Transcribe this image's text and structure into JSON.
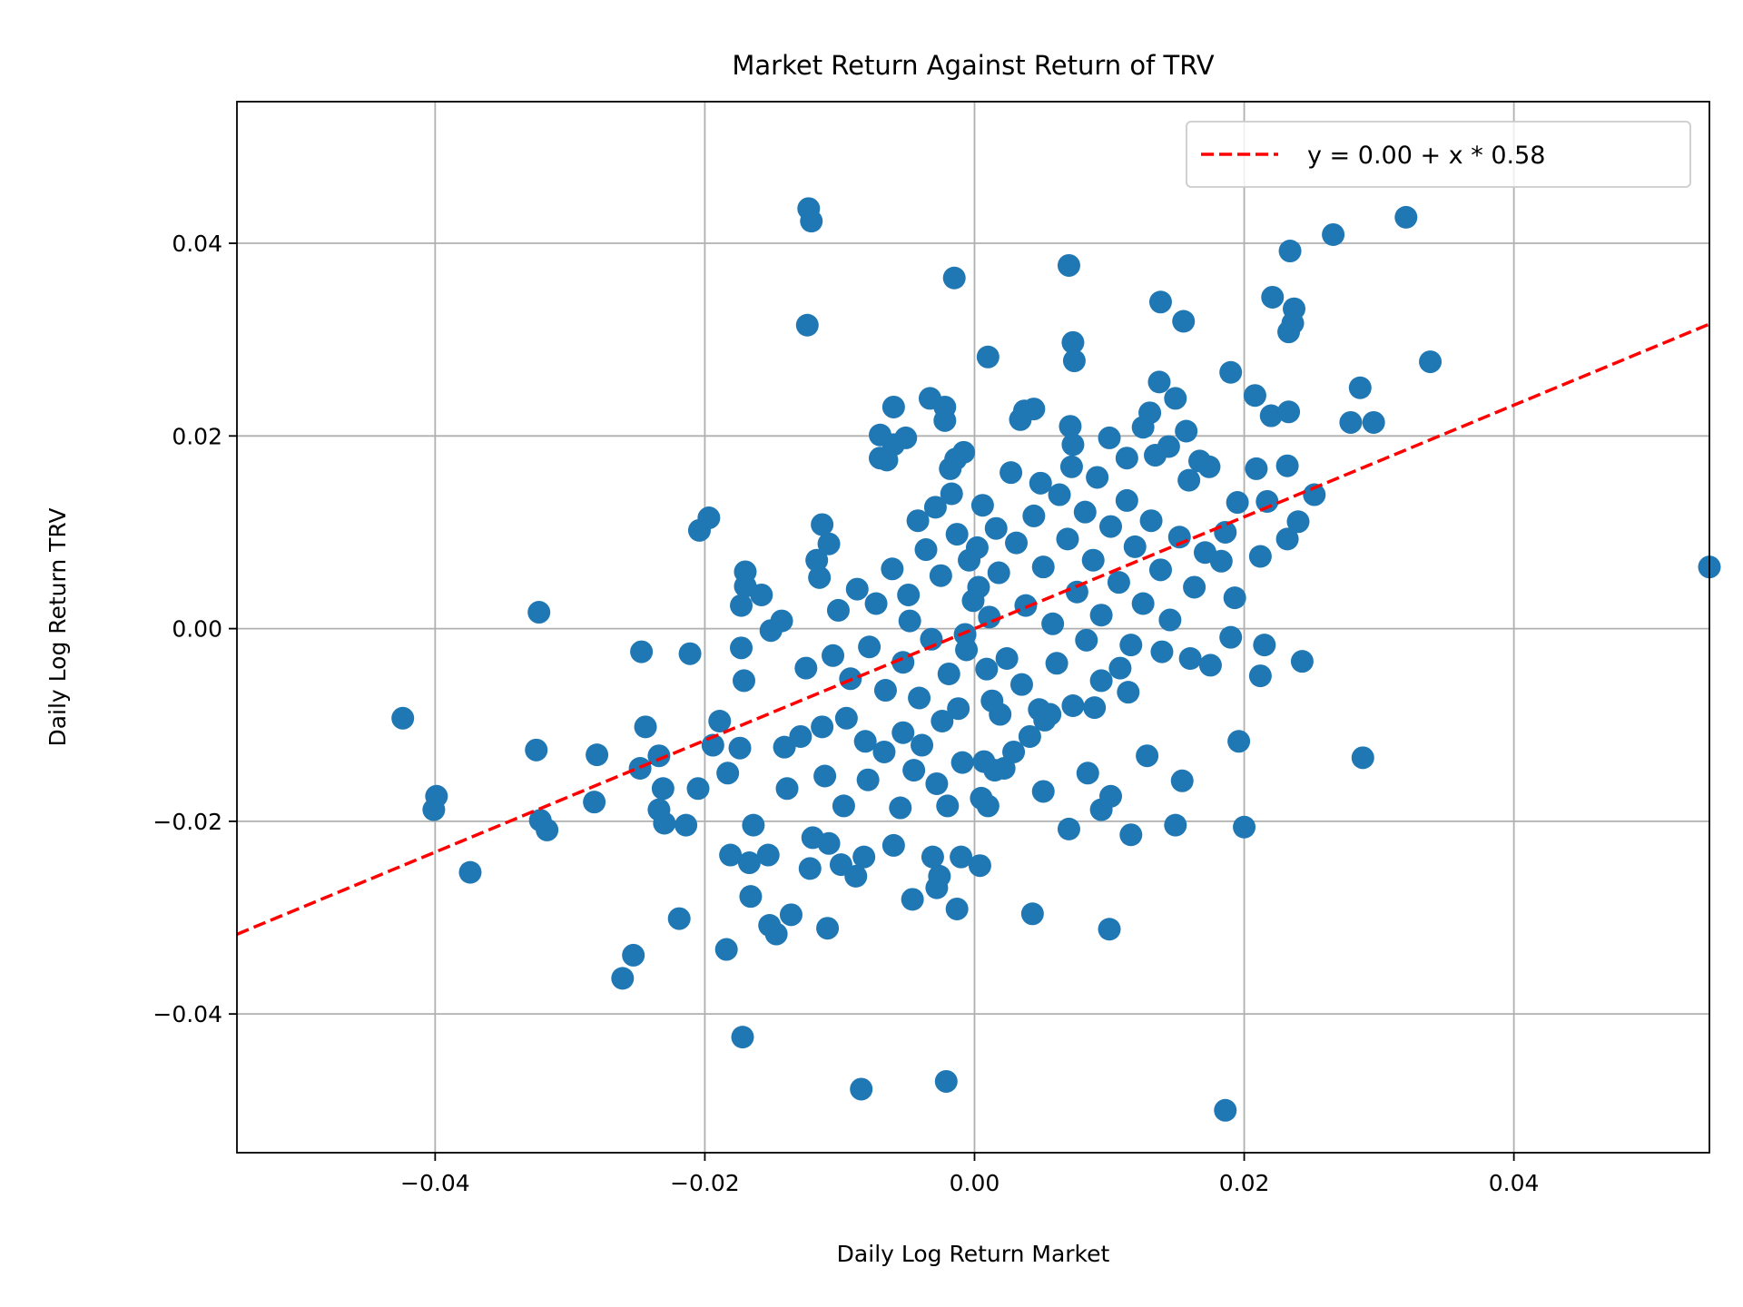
{
  "chart_data": {
    "type": "scatter",
    "title": "Market Return Against Return of TRV",
    "xlabel": "Daily Log Return Market",
    "ylabel": "Daily Log Return TRV",
    "xlim": [
      -0.0547,
      0.0545
    ],
    "ylim": [
      -0.0544,
      0.0547
    ],
    "xticks": [
      -0.04,
      -0.02,
      0.0,
      0.02,
      0.04
    ],
    "xtick_labels": [
      "−0.04",
      "−0.02",
      "0.00",
      "0.02",
      "0.04"
    ],
    "yticks": [
      -0.04,
      -0.02,
      0.0,
      0.02,
      0.04
    ],
    "ytick_labels": [
      "−0.04",
      "−0.02",
      "0.00",
      "0.02",
      "0.04"
    ],
    "grid": true,
    "legend": {
      "placement": "top-right",
      "entries": [
        "y = 0.00 + x * 0.58"
      ]
    },
    "fit_line": {
      "intercept": 0.0,
      "slope": 0.58,
      "color": "#ff0000",
      "style": "dashed"
    },
    "point_color": "#1f77b4",
    "points": [
      [
        0.0545,
        0.0064
      ],
      [
        -0.0424,
        -0.0093
      ],
      [
        -0.0399,
        -0.0174
      ],
      [
        -0.0401,
        -0.0188
      ],
      [
        -0.0374,
        -0.0253
      ],
      [
        -0.0323,
        0.0017
      ],
      [
        -0.0325,
        -0.0126
      ],
      [
        -0.0322,
        -0.0199
      ],
      [
        -0.0317,
        -0.0209
      ],
      [
        -0.028,
        -0.0131
      ],
      [
        -0.0282,
        -0.018
      ],
      [
        -0.0247,
        -0.0024
      ],
      [
        -0.0244,
        -0.0102
      ],
      [
        -0.0248,
        -0.0145
      ],
      [
        -0.0234,
        -0.0132
      ],
      [
        -0.0231,
        -0.0166
      ],
      [
        -0.0234,
        -0.0188
      ],
      [
        -0.023,
        -0.0202
      ],
      [
        -0.0214,
        -0.0204
      ],
      [
        -0.0211,
        -0.0026
      ],
      [
        -0.0204,
        0.0102
      ],
      [
        -0.0197,
        0.0115
      ],
      [
        -0.0205,
        -0.0166
      ],
      [
        -0.0219,
        -0.0301
      ],
      [
        -0.0253,
        -0.0339
      ],
      [
        -0.0261,
        -0.0363
      ],
      [
        -0.0184,
        -0.0333
      ],
      [
        -0.0172,
        -0.0424
      ],
      [
        -0.0084,
        -0.0478
      ],
      [
        -0.0021,
        -0.047
      ],
      [
        0.0186,
        -0.05
      ],
      [
        -0.0123,
        0.0436
      ],
      [
        -0.0121,
        0.0423
      ],
      [
        -0.0124,
        0.0315
      ],
      [
        -0.0015,
        0.0364
      ],
      [
        0.007,
        0.0377
      ],
      [
        0.032,
        0.0427
      ],
      [
        0.0266,
        0.0409
      ],
      [
        0.0234,
        0.0392
      ],
      [
        0.0221,
        0.0344
      ],
      [
        0.0237,
        0.0332
      ],
      [
        0.0236,
        0.0317
      ],
      [
        0.0233,
        0.0308
      ],
      [
        0.0138,
        0.0339
      ],
      [
        0.0155,
        0.0319
      ],
      [
        0.001,
        0.0282
      ],
      [
        0.0073,
        0.0297
      ],
      [
        0.0074,
        0.0278
      ],
      [
        0.0338,
        0.0277
      ],
      [
        0.019,
        0.0266
      ],
      [
        0.0286,
        0.025
      ],
      [
        0.0208,
        0.0242
      ],
      [
        0.022,
        0.0221
      ],
      [
        0.0233,
        0.0225
      ],
      [
        0.0279,
        0.0214
      ],
      [
        0.0296,
        0.0214
      ],
      [
        0.0252,
        0.0139
      ],
      [
        0.024,
        0.0111
      ],
      [
        0.0232,
        0.0093
      ],
      [
        0.0209,
        0.0166
      ],
      [
        0.0232,
        0.0169
      ],
      [
        0.0217,
        0.0132
      ],
      [
        0.0243,
        -0.0034
      ],
      [
        0.0215,
        -0.0017
      ],
      [
        0.0212,
        -0.0049
      ],
      [
        0.0196,
        -0.0117
      ],
      [
        0.02,
        -0.0206
      ],
      [
        0.0288,
        -0.0134
      ],
      [
        0.0128,
        -0.0132
      ],
      [
        0.0154,
        -0.0158
      ],
      [
        0.0149,
        -0.0204
      ],
      [
        0.0116,
        -0.0214
      ],
      [
        0.01,
        -0.0312
      ],
      [
        0.0101,
        -0.0174
      ],
      [
        0.0094,
        -0.0188
      ],
      [
        0.0084,
        -0.015
      ],
      [
        0.007,
        -0.0208
      ],
      [
        0.0051,
        -0.0169
      ],
      [
        0.0043,
        -0.0296
      ],
      [
        0.0004,
        -0.0246
      ],
      [
        -0.0013,
        -0.0291
      ],
      [
        -0.0028,
        -0.0269
      ],
      [
        -0.0026,
        -0.0257
      ],
      [
        -0.0046,
        -0.0281
      ],
      [
        -0.0031,
        -0.0237
      ],
      [
        -0.001,
        -0.0237
      ],
      [
        -0.006,
        -0.0225
      ],
      [
        -0.0109,
        -0.0311
      ],
      [
        -0.0136,
        -0.0297
      ],
      [
        -0.0152,
        -0.0308
      ],
      [
        -0.0147,
        -0.0317
      ],
      [
        -0.0166,
        -0.0278
      ],
      [
        -0.0181,
        -0.0235
      ],
      [
        -0.0167,
        -0.0243
      ],
      [
        -0.0153,
        -0.0235
      ],
      [
        -0.0122,
        -0.0249
      ],
      [
        -0.012,
        -0.0217
      ],
      [
        -0.0088,
        -0.0257
      ],
      [
        -0.0082,
        -0.0237
      ],
      [
        -0.0099,
        -0.0245
      ],
      [
        -0.0108,
        -0.0223
      ],
      [
        -0.0164,
        -0.0204
      ],
      [
        -0.0183,
        -0.015
      ],
      [
        -0.0194,
        -0.0121
      ],
      [
        -0.0174,
        -0.0124
      ],
      [
        -0.0189,
        -0.0096
      ],
      [
        -0.0171,
        -0.0054
      ],
      [
        -0.0173,
        -0.002
      ],
      [
        -0.0173,
        0.0024
      ],
      [
        -0.017,
        0.0059
      ],
      [
        -0.017,
        0.0044
      ],
      [
        -0.0158,
        0.0035
      ],
      [
        -0.0151,
        -0.0002
      ],
      [
        -0.0143,
        0.0008
      ],
      [
        -0.0113,
        0.0108
      ],
      [
        -0.0108,
        0.0088
      ],
      [
        -0.0117,
        0.0071
      ],
      [
        -0.0115,
        0.0053
      ],
      [
        -0.007,
        0.0177
      ],
      [
        -0.006,
        0.0191
      ],
      [
        -0.0065,
        0.0175
      ],
      [
        -0.006,
        0.023
      ],
      [
        -0.007,
        0.0201
      ],
      [
        -0.0051,
        0.0198
      ],
      [
        -0.0033,
        0.0239
      ],
      [
        -0.0022,
        0.023
      ],
      [
        -0.0022,
        0.0216
      ],
      [
        -0.0008,
        0.0183
      ],
      [
        -0.0014,
        0.0176
      ],
      [
        -0.0018,
        0.0166
      ],
      [
        0.0034,
        0.0217
      ],
      [
        0.0037,
        0.0226
      ],
      [
        0.0044,
        0.0228
      ],
      [
        0.0071,
        0.021
      ],
      [
        0.0073,
        0.0191
      ],
      [
        0.01,
        0.0198
      ],
      [
        0.0113,
        0.0177
      ],
      [
        0.0125,
        0.0209
      ],
      [
        0.013,
        0.0224
      ],
      [
        0.0137,
        0.0256
      ],
      [
        0.0149,
        0.0239
      ],
      [
        0.0157,
        0.0205
      ],
      [
        0.0134,
        0.018
      ],
      [
        0.0144,
        0.0189
      ],
      [
        0.0167,
        0.0174
      ],
      [
        0.0174,
        0.0168
      ],
      [
        0.0159,
        0.0154
      ],
      [
        0.0186,
        0.01
      ],
      [
        0.0183,
        0.007
      ],
      [
        0.0195,
        0.0131
      ],
      [
        0.0212,
        0.0075
      ],
      [
        0.019,
        -0.0009
      ],
      [
        0.0193,
        0.0032
      ],
      [
        0.0175,
        -0.0038
      ],
      [
        0.016,
        -0.0031
      ],
      [
        0.0139,
        -0.0024
      ],
      [
        0.0114,
        -0.0066
      ],
      [
        0.0116,
        -0.0017
      ],
      [
        0.0108,
        -0.0041
      ],
      [
        0.0089,
        -0.0082
      ],
      [
        0.0094,
        -0.0054
      ],
      [
        0.0073,
        -0.008
      ],
      [
        0.0056,
        -0.0089
      ],
      [
        0.0048,
        -0.0084
      ],
      [
        0.0052,
        -0.0095
      ],
      [
        0.0019,
        -0.0089
      ],
      [
        0.0013,
        -0.0075
      ],
      [
        0.0007,
        -0.0138
      ],
      [
        0.0015,
        -0.0147
      ],
      [
        0.0022,
        -0.0145
      ],
      [
        0.001,
        -0.0184
      ],
      [
        0.0005,
        -0.0176
      ],
      [
        -0.0028,
        -0.0161
      ],
      [
        -0.002,
        -0.0184
      ],
      [
        -0.0045,
        -0.0147
      ],
      [
        -0.0055,
        -0.0186
      ],
      [
        -0.0079,
        -0.0157
      ],
      [
        -0.0097,
        -0.0184
      ],
      [
        -0.0111,
        -0.0153
      ],
      [
        -0.0139,
        -0.0166
      ],
      [
        -0.0141,
        -0.0123
      ],
      [
        -0.0129,
        -0.0112
      ],
      [
        -0.0113,
        -0.0102
      ],
      [
        -0.0095,
        -0.0093
      ],
      [
        -0.0081,
        -0.0117
      ],
      [
        -0.0067,
        -0.0128
      ],
      [
        -0.0053,
        -0.0108
      ],
      [
        -0.0039,
        -0.0121
      ],
      [
        -0.0024,
        -0.0096
      ],
      [
        -0.0012,
        -0.0083
      ],
      [
        -0.0125,
        -0.0041
      ],
      [
        -0.0105,
        -0.0028
      ],
      [
        -0.0092,
        -0.0052
      ],
      [
        -0.0078,
        -0.0019
      ],
      [
        -0.0066,
        -0.0064
      ],
      [
        -0.0053,
        -0.0035
      ],
      [
        -0.0041,
        -0.0072
      ],
      [
        -0.0032,
        -0.0011
      ],
      [
        -0.0019,
        -0.0047
      ],
      [
        -0.0006,
        -0.0022
      ],
      [
        -0.0101,
        0.0019
      ],
      [
        -0.0087,
        0.0041
      ],
      [
        -0.0073,
        0.0026
      ],
      [
        -0.0061,
        0.0062
      ],
      [
        -0.0049,
        0.0035
      ],
      [
        -0.0036,
        0.0082
      ],
      [
        -0.0025,
        0.0055
      ],
      [
        -0.0013,
        0.0098
      ],
      [
        -0.0004,
        0.0071
      ],
      [
        -0.0029,
        0.0126
      ],
      [
        -0.0042,
        0.0112
      ],
      [
        -0.0017,
        0.014
      ],
      [
        0.0003,
        0.0043
      ],
      [
        0.0011,
        0.0012
      ],
      [
        0.0018,
        0.0058
      ],
      [
        0.0024,
        -0.0031
      ],
      [
        0.0031,
        0.0089
      ],
      [
        0.0038,
        0.0024
      ],
      [
        0.0044,
        0.0117
      ],
      [
        0.0051,
        0.0064
      ],
      [
        0.0058,
        0.0005
      ],
      [
        0.0063,
        0.0139
      ],
      [
        0.0069,
        0.0093
      ],
      [
        0.0076,
        0.0038
      ],
      [
        0.0082,
        0.0121
      ],
      [
        0.0088,
        0.0071
      ],
      [
        0.0094,
        0.0014
      ],
      [
        0.0101,
        0.0106
      ],
      [
        0.0107,
        0.0048
      ],
      [
        0.0113,
        0.0133
      ],
      [
        0.0119,
        0.0085
      ],
      [
        0.0125,
        0.0026
      ],
      [
        0.0131,
        0.0112
      ],
      [
        0.0138,
        0.0061
      ],
      [
        0.0145,
        0.0009
      ],
      [
        0.0152,
        0.0095
      ],
      [
        0.0163,
        0.0043
      ],
      [
        0.0171,
        0.0079
      ],
      [
        0.0027,
        0.0162
      ],
      [
        0.0049,
        0.0151
      ],
      [
        0.0072,
        0.0168
      ],
      [
        0.0091,
        0.0157
      ],
      [
        0.0016,
        0.0104
      ],
      [
        0.0006,
        0.0128
      ],
      [
        0.0035,
        -0.0058
      ],
      [
        0.0061,
        -0.0036
      ],
      [
        0.0083,
        -0.0012
      ],
      [
        0.0041,
        -0.0112
      ],
      [
        -0.0009,
        -0.0139
      ],
      [
        0.0029,
        -0.0128
      ],
      [
        -0.0001,
        0.0029
      ],
      [
        -0.0007,
        -0.0006
      ],
      [
        0.0009,
        -0.0042
      ],
      [
        0.0002,
        0.0084
      ],
      [
        -0.0048,
        0.0008
      ]
    ]
  }
}
